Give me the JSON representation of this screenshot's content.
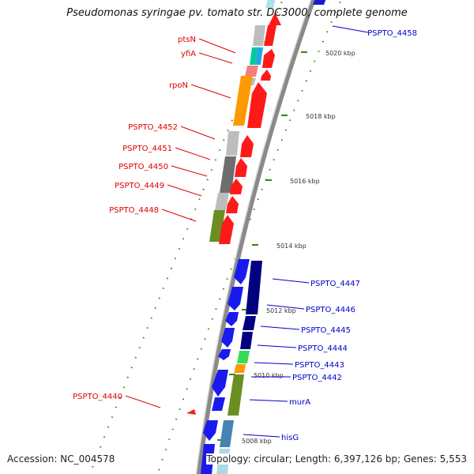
{
  "title": "Pseudomonas syringae pv. tomato str. DC3000, complete genome",
  "footer": {
    "accession": "Accession: NC_004578",
    "summary": "Topology: circular; Length: 6,397,126 bp; Genes: 5,553"
  },
  "colors": {
    "reverse_label": "#e00000",
    "forward_label": "#0000cc",
    "backbone": "#8a8a8a",
    "tick": "#2e8b00"
  },
  "scale_ticks": [
    {
      "label": "5020 kbp"
    },
    {
      "label": "5018 kbp"
    },
    {
      "label": "5016 kbp"
    },
    {
      "label": "5014 kbp"
    },
    {
      "label": "5012 kbp"
    },
    {
      "label": "5010 kbp"
    },
    {
      "label": "5008 kbp"
    }
  ],
  "reverse_genes": [
    {
      "label": "ptsN"
    },
    {
      "label": "yfiA"
    },
    {
      "label": "rpoN"
    },
    {
      "label": "PSPTO_4452"
    },
    {
      "label": "PSPTO_4451"
    },
    {
      "label": "PSPTO_4450"
    },
    {
      "label": "PSPTO_4449"
    },
    {
      "label": "PSPTO_4448"
    },
    {
      "label": "PSPTO_4440"
    }
  ],
  "forward_genes": [
    {
      "label": "PSPTO_4458"
    },
    {
      "label": "PSPTO_4447"
    },
    {
      "label": "PSPTO_4446"
    },
    {
      "label": "PSPTO_4445"
    },
    {
      "label": "PSPTO_4444"
    },
    {
      "label": "PSPTO_4443"
    },
    {
      "label": "PSPTO_4442"
    },
    {
      "label": "murA"
    },
    {
      "label": "hisG"
    }
  ]
}
